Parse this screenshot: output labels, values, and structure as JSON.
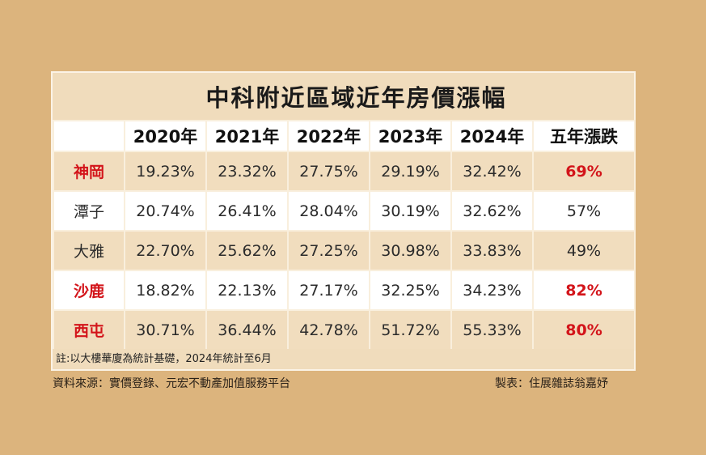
{
  "chart_data": {
    "type": "table",
    "title": "中科附近區域近年房價漲幅",
    "columns": [
      "",
      "2020年",
      "2021年",
      "2022年",
      "2023年",
      "2024年",
      "五年漲跌"
    ],
    "rows": [
      {
        "region": "神岡",
        "values": [
          "19.23%",
          "23.32%",
          "27.75%",
          "29.19%",
          "32.42%"
        ],
        "total": "69%",
        "highlight": true
      },
      {
        "region": "潭子",
        "values": [
          "20.74%",
          "26.41%",
          "28.04%",
          "30.19%",
          "32.62%"
        ],
        "total": "57%",
        "highlight": false
      },
      {
        "region": "大雅",
        "values": [
          "22.70%",
          "25.62%",
          "27.25%",
          "30.98%",
          "33.83%"
        ],
        "total": "49%",
        "highlight": false
      },
      {
        "region": "沙鹿",
        "values": [
          "18.82%",
          "22.13%",
          "27.17%",
          "32.25%",
          "34.23%"
        ],
        "total": "82%",
        "highlight": true
      },
      {
        "region": "西屯",
        "values": [
          "30.71%",
          "36.44%",
          "42.78%",
          "51.72%",
          "55.33%"
        ],
        "total": "80%",
        "highlight": true
      }
    ],
    "note": "註:以大樓華廈為統計基礎，2024年統計至6月"
  },
  "footer": {
    "source": "資料來源：實價登錄、元宏不動產加值服務平台",
    "credit": "製表：住展雜誌翁嘉妤"
  },
  "colors": {
    "background": "#dcb47d",
    "band": "#f1ddbe",
    "highlight_text": "#d3141a"
  }
}
